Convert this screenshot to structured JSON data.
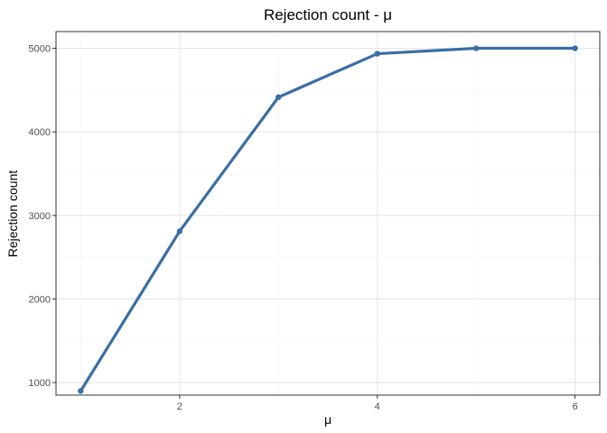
{
  "chart_data": {
    "type": "line",
    "title": "Rejection count - μ",
    "xlabel": "μ",
    "ylabel": "Rejection count",
    "x": [
      1,
      2,
      3,
      4,
      5,
      6
    ],
    "series": [
      {
        "values": [
          900,
          2810,
          4415,
          4935,
          5000,
          5000
        ]
      }
    ],
    "xlim": [
      0.75,
      6.25
    ],
    "ylim": [
      850,
      5200
    ],
    "x_ticks": [
      2,
      4,
      6
    ],
    "x_tick_labels": [
      "2",
      "4",
      "6"
    ],
    "y_ticks": [
      1000,
      2000,
      3000,
      4000,
      5000
    ],
    "y_tick_labels": [
      "1000",
      "2000",
      "3000",
      "4000",
      "5000"
    ],
    "grid": true,
    "legend": "none",
    "line_color": "#3a6ea5",
    "grid_major_color": "#e5e5e5",
    "grid_minor_color": "#f2f2f2",
    "panel_border_color": "#333333"
  }
}
